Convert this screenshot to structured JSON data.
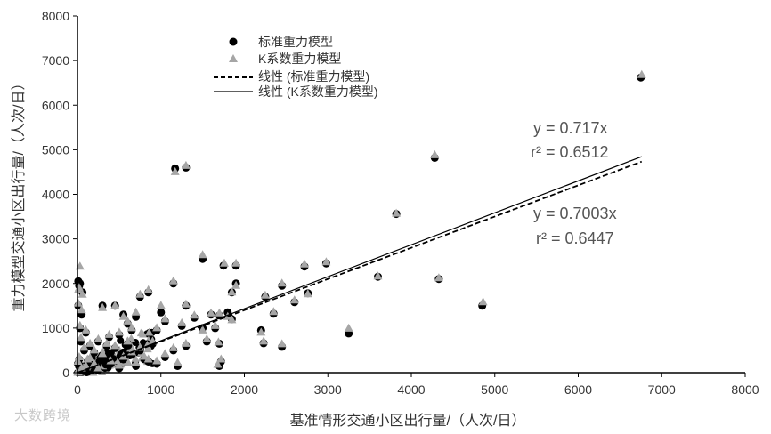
{
  "chart_data": {
    "type": "scatter",
    "xlabel": "基准情形交通小区出行量/（人次/日）",
    "ylabel": "重力模型交通小区出行量/（人次/日）",
    "xlim": [
      0,
      8000
    ],
    "ylim": [
      0,
      8000
    ],
    "xticks": [
      "0",
      "1000",
      "2000",
      "3000",
      "4000",
      "5000",
      "6000",
      "7000",
      "8000"
    ],
    "yticks": [
      "0",
      "1000",
      "2000",
      "3000",
      "4000",
      "5000",
      "6000",
      "7000",
      "8000"
    ],
    "grid": false,
    "legend_position": "top-left",
    "legend": [
      {
        "label": "标准重力模型",
        "marker": "circle"
      },
      {
        "label": "K系数重力模型",
        "marker": "triangle"
      },
      {
        "label": "线性 (标准重力模型)",
        "marker": "dashed-line"
      },
      {
        "label": "线性 (K系数重力模型)",
        "marker": "solid-line"
      }
    ],
    "colors": {
      "standard": "#000000",
      "k_factor": "#a6a6a6",
      "axis": "#000000"
    },
    "trendlines": [
      {
        "series": "标准重力模型",
        "slope": 0.7003,
        "style": "dashed",
        "equation": "y = 0.7003x",
        "r2": "r² = 0.6447"
      },
      {
        "series": "K系数重力模型",
        "slope": 0.717,
        "style": "solid",
        "equation": "y = 0.717x",
        "r2": "r² = 0.6512"
      }
    ],
    "series": [
      {
        "name": "标准重力模型",
        "marker": "circle",
        "points": [
          [
            6750,
            6620
          ],
          [
            4280,
            4820
          ],
          [
            3820,
            3560
          ],
          [
            1170,
            4580
          ],
          [
            1300,
            4600
          ],
          [
            4850,
            1500
          ],
          [
            4330,
            2100
          ],
          [
            3600,
            2150
          ],
          [
            3250,
            880
          ],
          [
            2980,
            2450
          ],
          [
            2720,
            2380
          ],
          [
            2760,
            1780
          ],
          [
            2600,
            1580
          ],
          [
            2450,
            1950
          ],
          [
            2450,
            580
          ],
          [
            2350,
            1320
          ],
          [
            2250,
            1700
          ],
          [
            2230,
            660
          ],
          [
            2200,
            950
          ],
          [
            1900,
            2400
          ],
          [
            1900,
            2000
          ],
          [
            1750,
            2400
          ],
          [
            1850,
            1800
          ],
          [
            1800,
            1350
          ],
          [
            1700,
            1280
          ],
          [
            1850,
            1200
          ],
          [
            1500,
            2550
          ],
          [
            1600,
            1300
          ],
          [
            1650,
            1000
          ],
          [
            1700,
            650
          ],
          [
            1720,
            250
          ],
          [
            1700,
            150
          ],
          [
            1500,
            1000
          ],
          [
            1550,
            700
          ],
          [
            1400,
            1230
          ],
          [
            1300,
            1500
          ],
          [
            1250,
            1050
          ],
          [
            1150,
            2000
          ],
          [
            1050,
            1150
          ],
          [
            1000,
            1350
          ],
          [
            950,
            950
          ],
          [
            900,
            650
          ],
          [
            850,
            1800
          ],
          [
            750,
            1700
          ],
          [
            700,
            1250
          ],
          [
            650,
            950
          ],
          [
            600,
            1100
          ],
          [
            550,
            1300
          ],
          [
            500,
            850
          ],
          [
            450,
            1500
          ],
          [
            380,
            800
          ],
          [
            300,
            1500
          ],
          [
            250,
            700
          ],
          [
            1150,
            500
          ],
          [
            1200,
            150
          ],
          [
            1300,
            600
          ],
          [
            1050,
            350
          ],
          [
            950,
            200
          ],
          [
            150,
            300
          ],
          [
            100,
            900
          ],
          [
            30,
            2000
          ],
          [
            10,
            2050
          ],
          [
            20,
            1950
          ],
          [
            50,
            1300
          ],
          [
            30,
            1000
          ],
          [
            40,
            700
          ],
          [
            80,
            500
          ],
          [
            120,
            250
          ],
          [
            200,
            450
          ],
          [
            300,
            350
          ],
          [
            400,
            200
          ],
          [
            450,
            550
          ],
          [
            500,
            100
          ],
          [
            550,
            300
          ],
          [
            600,
            650
          ],
          [
            650,
            400
          ],
          [
            700,
            150
          ],
          [
            750,
            500
          ],
          [
            800,
            300
          ],
          [
            850,
            250
          ],
          [
            200,
            150
          ],
          [
            100,
            100
          ],
          [
            50,
            50
          ],
          [
            20,
            300
          ],
          [
            150,
            600
          ],
          [
            250,
            50
          ],
          [
            350,
            600
          ],
          [
            60,
            1800
          ],
          [
            10,
            1500
          ],
          [
            5,
            200
          ]
        ]
      },
      {
        "name": "K系数重力模型",
        "marker": "triangle",
        "points": [
          [
            6760,
            6680
          ],
          [
            4280,
            4880
          ],
          [
            3820,
            3570
          ],
          [
            1170,
            4500
          ],
          [
            1300,
            4640
          ],
          [
            4860,
            1580
          ],
          [
            4330,
            2120
          ],
          [
            3600,
            2160
          ],
          [
            3250,
            990
          ],
          [
            2980,
            2480
          ],
          [
            2720,
            2430
          ],
          [
            2760,
            1760
          ],
          [
            2600,
            1620
          ],
          [
            2450,
            2000
          ],
          [
            2450,
            640
          ],
          [
            2350,
            1360
          ],
          [
            2250,
            1730
          ],
          [
            2230,
            700
          ],
          [
            2200,
            900
          ],
          [
            1900,
            2450
          ],
          [
            1900,
            1950
          ],
          [
            1760,
            2450
          ],
          [
            1850,
            1800
          ],
          [
            1800,
            1250
          ],
          [
            1700,
            1330
          ],
          [
            1850,
            1180
          ],
          [
            1500,
            2640
          ],
          [
            1600,
            1330
          ],
          [
            1650,
            1050
          ],
          [
            1690,
            680
          ],
          [
            1720,
            300
          ],
          [
            1680,
            180
          ],
          [
            1500,
            950
          ],
          [
            1550,
            750
          ],
          [
            1400,
            1280
          ],
          [
            1300,
            1530
          ],
          [
            1250,
            1110
          ],
          [
            1150,
            2050
          ],
          [
            1050,
            1200
          ],
          [
            1000,
            1500
          ],
          [
            950,
            1000
          ],
          [
            900,
            700
          ],
          [
            850,
            1850
          ],
          [
            750,
            1750
          ],
          [
            700,
            1350
          ],
          [
            650,
            1000
          ],
          [
            600,
            1150
          ],
          [
            550,
            1250
          ],
          [
            500,
            900
          ],
          [
            450,
            1500
          ],
          [
            380,
            850
          ],
          [
            300,
            1450
          ],
          [
            250,
            750
          ],
          [
            1150,
            550
          ],
          [
            1200,
            220
          ],
          [
            1300,
            650
          ],
          [
            1050,
            420
          ],
          [
            950,
            260
          ],
          [
            150,
            330
          ],
          [
            100,
            950
          ],
          [
            30,
            2380
          ],
          [
            10,
            1850
          ],
          [
            20,
            1900
          ],
          [
            50,
            1400
          ],
          [
            30,
            1050
          ],
          [
            40,
            780
          ],
          [
            80,
            560
          ],
          [
            120,
            300
          ],
          [
            200,
            500
          ],
          [
            300,
            420
          ],
          [
            400,
            260
          ],
          [
            450,
            600
          ],
          [
            500,
            160
          ],
          [
            550,
            360
          ],
          [
            600,
            700
          ],
          [
            650,
            460
          ],
          [
            700,
            220
          ],
          [
            750,
            560
          ],
          [
            800,
            360
          ],
          [
            850,
            300
          ],
          [
            200,
            200
          ],
          [
            100,
            150
          ],
          [
            50,
            100
          ],
          [
            20,
            350
          ],
          [
            150,
            650
          ],
          [
            250,
            100
          ],
          [
            350,
            650
          ],
          [
            60,
            1750
          ],
          [
            10,
            1550
          ],
          [
            5,
            250
          ]
        ]
      }
    ]
  },
  "watermark": {
    "text": "大数跨境"
  }
}
